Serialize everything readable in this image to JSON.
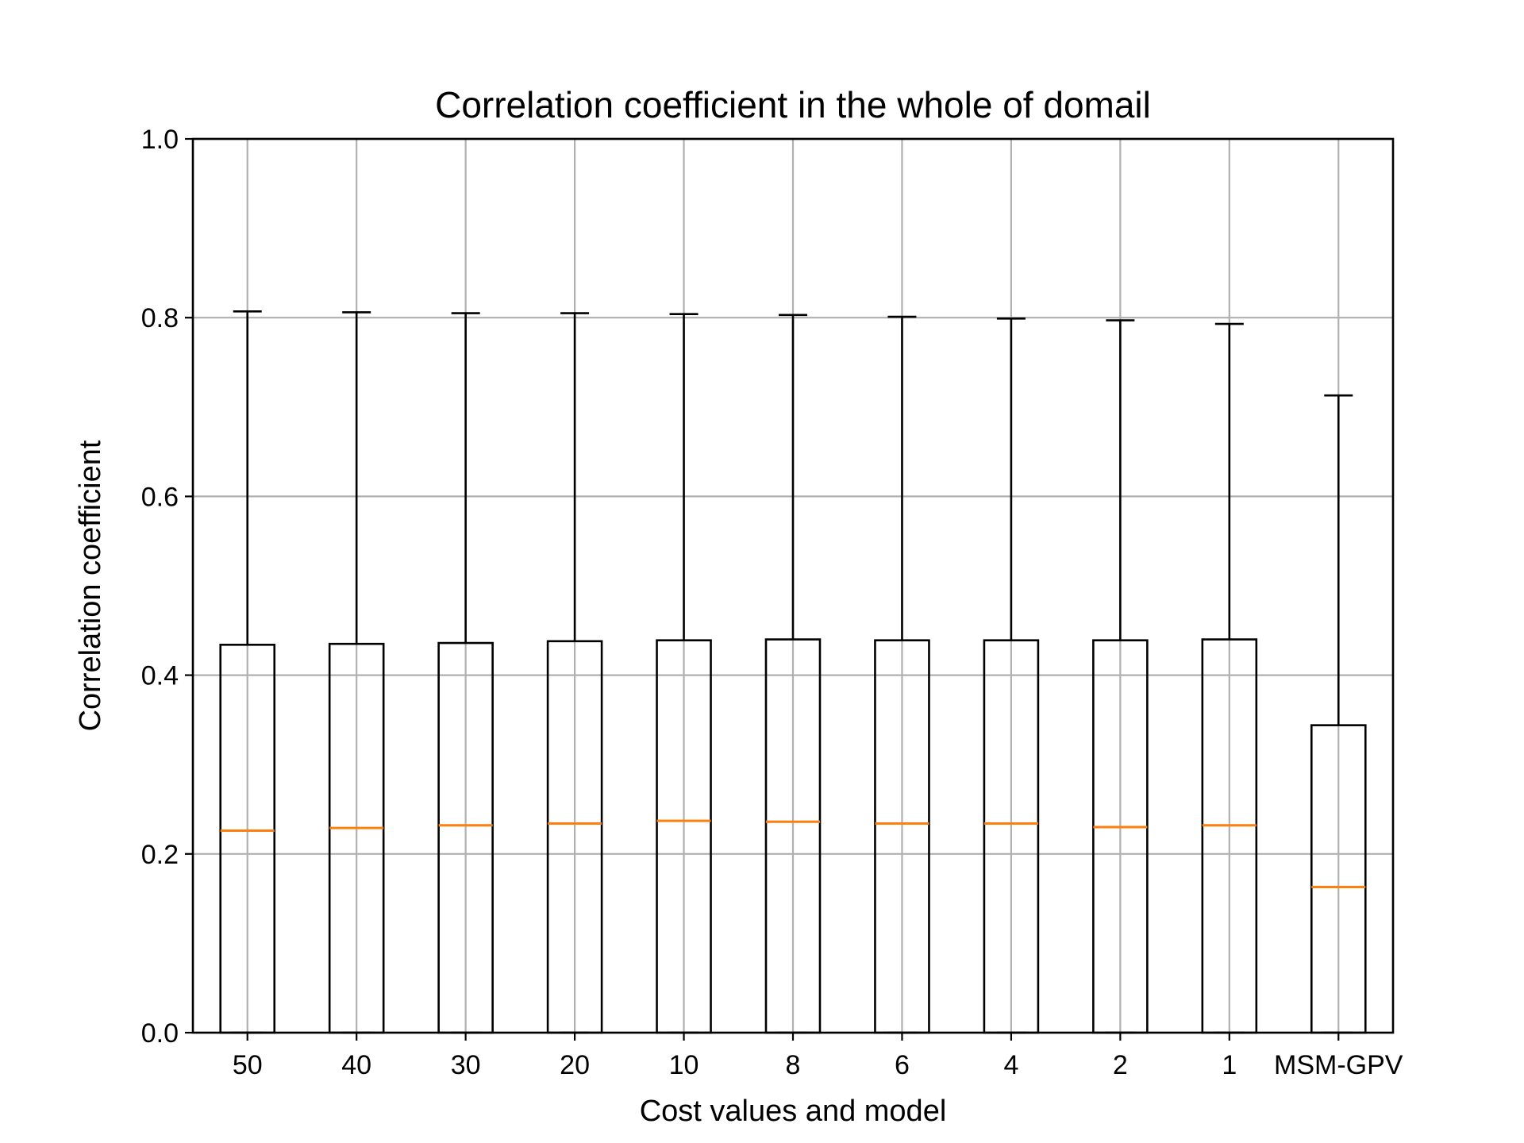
{
  "chart_data": {
    "type": "box",
    "title": "Correlation coefficient in the whole of domail",
    "xlabel": "Cost values and model",
    "ylabel": "Correlation coefficient",
    "ylim": [
      0.0,
      1.0
    ],
    "yticks": [
      "0.0",
      "0.2",
      "0.4",
      "0.6",
      "0.8",
      "1.0"
    ],
    "ytick_values": [
      0.0,
      0.2,
      0.4,
      0.6,
      0.8,
      1.0
    ],
    "grid": true,
    "categories": [
      "50",
      "40",
      "30",
      "20",
      "10",
      "8",
      "6",
      "4",
      "2",
      "1",
      "MSM-GPV"
    ],
    "boxes": [
      {
        "label": "50",
        "whislo": 0.0,
        "q1": 0.0,
        "med": 0.226,
        "q3": 0.434,
        "whishi": 0.807
      },
      {
        "label": "40",
        "whislo": 0.0,
        "q1": 0.0,
        "med": 0.229,
        "q3": 0.435,
        "whishi": 0.806
      },
      {
        "label": "30",
        "whislo": 0.0,
        "q1": 0.0,
        "med": 0.232,
        "q3": 0.436,
        "whishi": 0.805
      },
      {
        "label": "20",
        "whislo": 0.0,
        "q1": 0.0,
        "med": 0.234,
        "q3": 0.438,
        "whishi": 0.805
      },
      {
        "label": "10",
        "whislo": 0.0,
        "q1": 0.0,
        "med": 0.237,
        "q3": 0.439,
        "whishi": 0.804
      },
      {
        "label": "8",
        "whislo": 0.0,
        "q1": 0.0,
        "med": 0.236,
        "q3": 0.44,
        "whishi": 0.803
      },
      {
        "label": "6",
        "whislo": 0.0,
        "q1": 0.0,
        "med": 0.234,
        "q3": 0.439,
        "whishi": 0.801
      },
      {
        "label": "4",
        "whislo": 0.0,
        "q1": 0.0,
        "med": 0.234,
        "q3": 0.439,
        "whishi": 0.799
      },
      {
        "label": "2",
        "whislo": 0.0,
        "q1": 0.0,
        "med": 0.23,
        "q3": 0.439,
        "whishi": 0.797
      },
      {
        "label": "1",
        "whislo": 0.0,
        "q1": 0.0,
        "med": 0.232,
        "q3": 0.44,
        "whishi": 0.793
      },
      {
        "label": "MSM-GPV",
        "whislo": 0.0,
        "q1": 0.0,
        "med": 0.163,
        "q3": 0.344,
        "whishi": 0.713
      }
    ],
    "colors": {
      "box": "#000000",
      "median": "#ff7f0e",
      "grid": "#b0b0b0"
    }
  }
}
